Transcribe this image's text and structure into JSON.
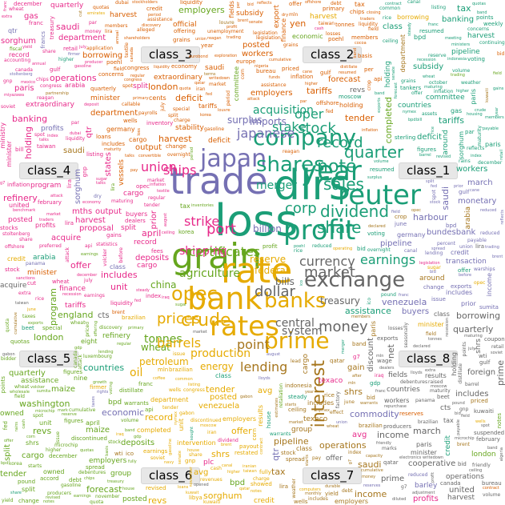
{
  "class_labels": [
    "class_3",
    "class_2",
    "class_4",
    "class_1",
    "class_5",
    "class_8",
    "class_6",
    "class_7"
  ],
  "palette": {
    "class_1": "#7570b3",
    "class_2": "#1b9e77",
    "class_3": "#d95f02",
    "class_4": "#e7298a",
    "class_5": "#66a61e",
    "class_6": "#e6ab02",
    "class_7": "#a6761d",
    "class_8": "#666666"
  },
  "big_words": [
    "trade",
    "dlrs",
    "loss",
    "grain",
    "rate",
    "profit",
    "bank",
    "year",
    "reuter",
    "rates",
    "japan",
    "company",
    "shares",
    "crude",
    "opec",
    "exchange",
    "prime",
    "banks",
    "market",
    "interest",
    "money",
    "currency",
    "dollar",
    "note",
    "share",
    "dividend",
    "sales",
    "quarter",
    "record",
    "oper",
    "earnings",
    "corp",
    "stake",
    "stock",
    "merger",
    "acquisition",
    "tonnes",
    "wheat",
    "shipping",
    "port",
    "ships",
    "strike",
    "union",
    "agriculture",
    "certificates",
    "prices",
    "barrels",
    "oil",
    "petroleum",
    "production",
    "energy",
    "lending",
    "point",
    "central",
    "system",
    "treasury",
    "bills",
    "federal",
    "reserve",
    "billion",
    "japanese",
    "surplus",
    "imports",
    "china"
  ],
  "mid_words": [
    "class",
    "cargo",
    "vessels",
    "workers",
    "seamen",
    "employers",
    "harbour",
    "semiconductor",
    "tariffs",
    "deficit",
    "countries",
    "ministry",
    "washington",
    "committee",
    "official",
    "states",
    "united",
    "common",
    "buyers",
    "subsidy",
    "program",
    "department",
    "futures",
    "sorghum",
    "maize",
    "barley",
    "soybean",
    "harvest",
    "certificate",
    "export",
    "usda",
    "farm",
    "commodity",
    "cooperative",
    "ecuador",
    "venezuela",
    "saudi",
    "arabia",
    "refinery",
    "pipeline",
    "output",
    "bpd",
    "cents",
    "posted",
    "texaco",
    "reserves",
    "fields",
    "gas",
    "minister",
    "percentage",
    "discount",
    "prime",
    "borrowing",
    "deposits",
    "banking",
    "england",
    "paris",
    "london",
    "germany",
    "yen",
    "stability",
    "monetary",
    "intervention",
    "currencies",
    "forecast",
    "economic",
    "finance",
    "nations",
    "foreign",
    "around",
    "assistance",
    "bundesbank",
    "eight",
    "offer",
    "tender",
    "takeover",
    "unit",
    "subsidiary",
    "acquire",
    "purchase",
    "holding",
    "owned",
    "completed",
    "agreement",
    "proposal",
    "transaction",
    "plc",
    "group",
    "split",
    "payable",
    "prior",
    "april",
    "march",
    "record",
    "quarterly",
    "extraordinary",
    "revs",
    "mths",
    "profits",
    "results",
    "income",
    "gain",
    "net",
    "shrs",
    "cts",
    "qtr",
    "avg",
    "includes",
    "tax",
    "credit",
    "nine",
    "operations"
  ],
  "small_words": [
    "showed",
    "concerns",
    "alleged",
    "mulroney",
    "microchip",
    "application",
    "partnership",
    "certain",
    "voting",
    "ownership",
    "additional",
    "approval",
    "shareholders",
    "stockholders",
    "assets",
    "rights",
    "sought",
    "europe",
    "mexico",
    "michigan",
    "warships",
    "gulf",
    "iran",
    "iraq",
    "kuwait",
    "attack",
    "tanker",
    "tankers",
    "navy",
    "lloyds",
    "insurance",
    "canal",
    "panama",
    "strikers",
    "dispute",
    "talks",
    "pay",
    "wage",
    "contract",
    "brazil",
    "brazilian",
    "argentina",
    "australia",
    "canada",
    "soviet",
    "union",
    "moscow",
    "taiwan",
    "korea",
    "korean",
    "exports",
    "trading",
    "reagan",
    "retaliation",
    "sanctions",
    "chips",
    "electronics",
    "computers",
    "textile",
    "protectionism",
    "legislation",
    "congress",
    "senate",
    "house",
    "bill",
    "wheat",
    "corn",
    "grains",
    "tonnes",
    "crop",
    "weather",
    "rains",
    "dry",
    "acreage",
    "planting",
    "sugar",
    "coffee",
    "cocoa",
    "rice",
    "beet",
    "cane",
    "quota",
    "quotas",
    "ico",
    "producers",
    "consumers",
    "members",
    "meeting",
    "ministers",
    "ceiling",
    "opec",
    "mln",
    "bpd",
    "barrel",
    "spot",
    "brent",
    "wti",
    "nymex",
    "dubai",
    "kuwaiti",
    "iranian",
    "nigeria",
    "qatar",
    "libya",
    "indonesia",
    "algeria",
    "gabon",
    "emirates",
    "exploration",
    "drilling",
    "wells",
    "reserves",
    "discovery",
    "offshore",
    "onshore",
    "field",
    "crude",
    "heating",
    "gasoline",
    "distillate",
    "inventories",
    "stocks",
    "api",
    "lending",
    "loans",
    "debt",
    "deposit",
    "maturity",
    "repurchase",
    "treasury",
    "fed",
    "funds",
    "overnight",
    "liquidity",
    "shortage",
    "surplus",
    "money",
    "market",
    "bills",
    "band",
    "assistance",
    "forecast",
    "estimates",
    "revised",
    "pound",
    "sterling",
    "mark",
    "marks",
    "franc",
    "francs",
    "lira",
    "guilder",
    "dealers",
    "traders",
    "intervention",
    "volcker",
    "baker",
    "stoltenberg",
    "poehl",
    "sumita",
    "miyazawa",
    "nakasone",
    "louvre",
    "accord",
    "plaza",
    "g7",
    "summit",
    "growth",
    "inflation",
    "gnp",
    "gdp",
    "economy",
    "recession",
    "consumer",
    "producer",
    "index",
    "unemployment",
    "jobless",
    "industrial",
    "payrolls",
    "wholesale",
    "retail",
    "housing",
    "starts",
    "orders",
    "durable",
    "factory",
    "inventory",
    "capacity",
    "utilization",
    "statistics",
    "bureau",
    "seasonally",
    "adjusted",
    "figures",
    "january",
    "february",
    "june",
    "july",
    "august",
    "september",
    "october",
    "november",
    "december",
    "weekly",
    "monthly",
    "annual",
    "fiscal",
    "year",
    "ended",
    "period",
    "prior",
    "dividend",
    "payout",
    "stock",
    "split",
    "holders",
    "record",
    "payable",
    "regular",
    "quarterly",
    "initial",
    "declared",
    "raised",
    "cut",
    "omitted",
    "suspended",
    "resumed",
    "increased",
    "reduced",
    "special",
    "extra",
    "acquisition",
    "merger",
    "tender",
    "offer",
    "bid",
    "bidder",
    "hostile",
    "friendly",
    "terms",
    "cash",
    "debentures",
    "notes",
    "convertible",
    "preferred",
    "common",
    "warrants",
    "underwriters",
    "underwritten",
    "issue",
    "offering",
    "priced",
    "yield",
    "coupon",
    "maturing",
    "eurobond",
    "lead",
    "manager",
    "fees",
    "listing",
    "luxembourg",
    "denominations",
    "redeemable",
    "callable",
    "par",
    "spread",
    "benchmark",
    "basis",
    "points",
    "percent",
    "volume",
    "session",
    "closing",
    "opened",
    "firmer",
    "weaker",
    "steady",
    "higher",
    "lower",
    "gains",
    "losses",
    "profit",
    "loss",
    "operating",
    "revenues",
    "earnings",
    "per",
    "share",
    "diluted",
    "primary",
    "fully",
    "extraordinary",
    "charge",
    "credit",
    "writedown",
    "provision",
    "reserve",
    "discontinued",
    "continuing",
    "restated",
    "reflects",
    "includes",
    "excludes",
    "before",
    "after",
    "taxes",
    "accounting",
    "change",
    "effect",
    "cumulative",
    "adjustment"
  ]
}
